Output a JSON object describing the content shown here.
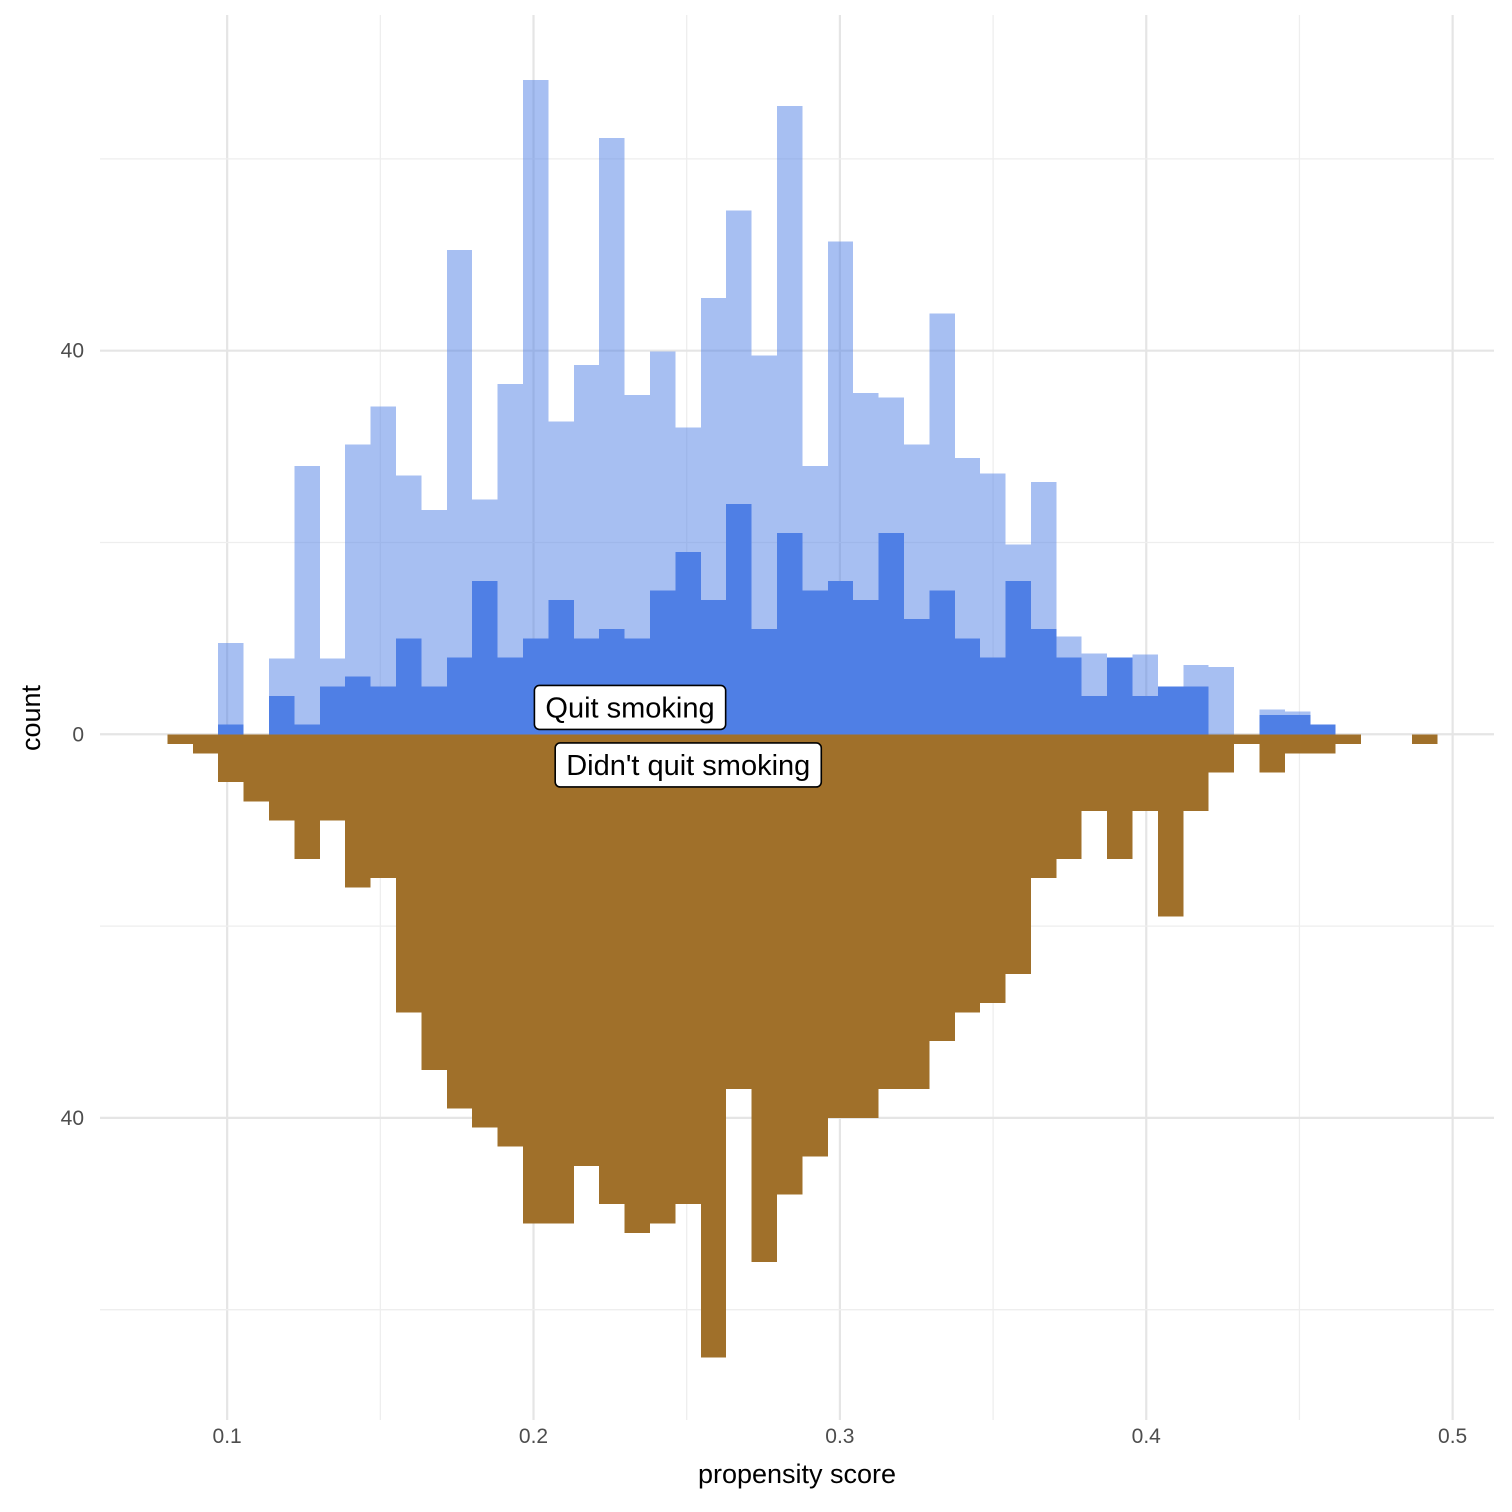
{
  "chart_data": {
    "type": "histogram",
    "title": "",
    "xlabel": "propensity score",
    "ylabel": "count",
    "xlim": [
      0.0585,
      0.5135
    ],
    "ylim": [
      -71.5,
      75
    ],
    "x_ticks": [
      0.1,
      0.2,
      0.3,
      0.4,
      0.5
    ],
    "x_tick_labels": [
      "0.1",
      "0.2",
      "0.3",
      "0.4",
      "0.5"
    ],
    "y_ticks": [
      -40,
      0,
      40
    ],
    "y_tick_labels": [
      "40",
      "0",
      "40"
    ],
    "grid": true,
    "bin_start": 0.0805,
    "bin_width": 0.00829,
    "series": [
      {
        "name": "Quit smoking",
        "direction": "up",
        "style": "weighted (light)",
        "color": "#4f7fe5",
        "opacity": 0.5,
        "values": [
          0,
          0,
          9.5,
          0,
          7.9,
          28,
          7.9,
          30.2,
          34.2,
          27,
          23.4,
          50.5,
          24.5,
          36.5,
          68.2,
          32.6,
          38.5,
          62.2,
          35.4,
          39.9,
          32,
          45.5,
          54.6,
          39.5,
          65.5,
          28,
          51.4,
          35.6,
          35.1,
          30.2,
          43.9,
          28.8,
          27.2,
          19.8,
          26.3,
          10.2,
          8.4,
          4.6,
          8.3,
          4.3,
          7.2,
          7,
          0,
          2.6,
          2.4,
          0,
          0,
          0,
          0,
          0
        ]
      },
      {
        "name": "Quit smoking",
        "direction": "up",
        "style": "unweighted",
        "color": "#4f7fe5",
        "opacity": 1,
        "values": [
          0,
          0,
          1,
          0,
          4,
          1,
          5,
          6,
          5,
          10,
          5,
          8,
          16,
          8,
          10,
          14,
          10,
          11,
          10,
          15,
          19,
          14,
          24,
          11,
          21,
          15,
          16,
          14,
          21,
          12,
          15,
          10,
          8,
          16,
          11,
          8,
          4,
          8,
          4,
          5,
          5,
          0,
          0,
          2,
          2,
          1,
          0,
          0,
          0,
          0
        ]
      },
      {
        "name": "Didn't quit smoking",
        "direction": "down",
        "style": "unweighted",
        "color": "#a0702a",
        "opacity": 1,
        "values": [
          1,
          2,
          5,
          7,
          9,
          13,
          9,
          16,
          15,
          29,
          35,
          39,
          41,
          43,
          51,
          51,
          45,
          49,
          52,
          51,
          49,
          65,
          37,
          55,
          48,
          44,
          40,
          40,
          37,
          37,
          32,
          29,
          28,
          25,
          15,
          13,
          8,
          13,
          8,
          19,
          8,
          4,
          1,
          4,
          2,
          2,
          1,
          0,
          0,
          1
        ]
      }
    ],
    "annotations": [
      {
        "label": "Quit smoking",
        "x": 0.2315,
        "y": 2.8
      },
      {
        "label": "Didn't quit smoking",
        "x": 0.2505,
        "y": -3.2
      }
    ]
  }
}
